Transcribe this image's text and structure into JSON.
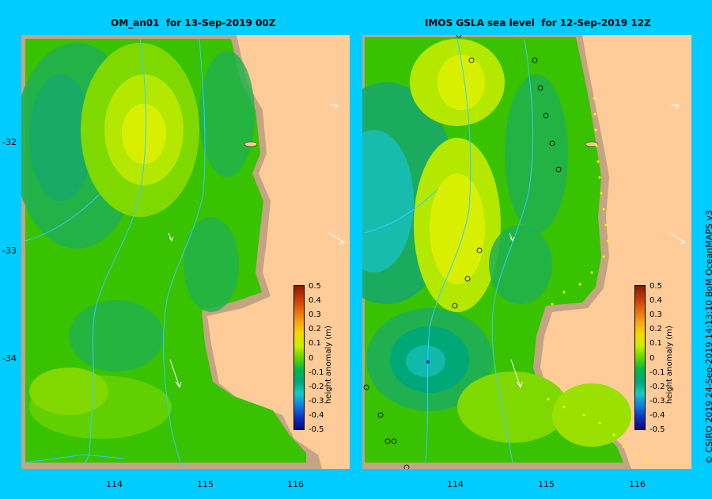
{
  "left_panel": {
    "title": "OM_an01  for 13-Sep-2019 00Z"
  },
  "right_panel": {
    "title": "IMOS GSLA sea level  for 12-Sep-2019 12Z"
  },
  "y_ticks": [
    "-32",
    "-33",
    "-34"
  ],
  "x_ticks": [
    "114",
    "115",
    "116"
  ],
  "colorbar": {
    "title": "height anomaly (m)",
    "labels": [
      "0.5",
      "0.4",
      "0.3",
      "0.2",
      "0.1",
      "0",
      "-0.1",
      "-0.2",
      "-0.3",
      "-0.4",
      "-0.5"
    ],
    "colors": [
      "#8b1a00",
      "#c0390b",
      "#e8660a",
      "#f5a418",
      "#f2d800",
      "#c8f000",
      "#64d600",
      "#00b84a",
      "#00a878",
      "#18c8c0",
      "#1080e0",
      "#1030c0",
      "#0a0a80"
    ]
  },
  "credit": "© CSIRO 2019   24-Sep-2019 14:13:10 BoM OceanMAPS v3",
  "colors": {
    "background": "#00ccff",
    "land": "#ffcc99",
    "shelf": "#c4a482",
    "ocean_base": "#38c200"
  }
}
